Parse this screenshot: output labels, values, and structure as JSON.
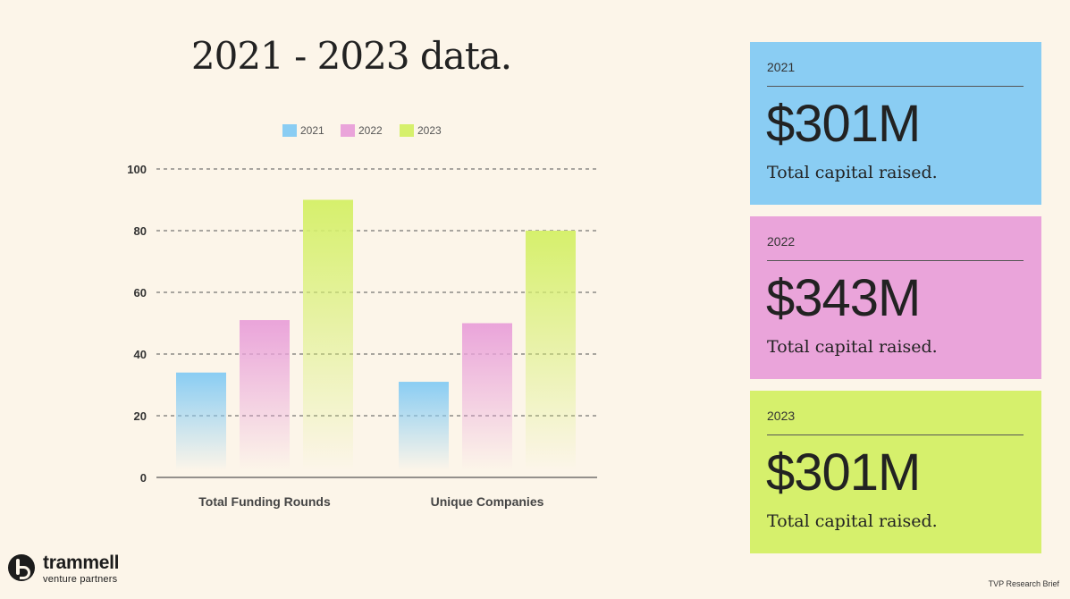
{
  "page": {
    "title": "2021 - 2023 data."
  },
  "chart_data": {
    "type": "bar",
    "title": "",
    "xlabel": "",
    "ylabel": "",
    "categories": [
      "Total Funding Rounds",
      "Unique Companies"
    ],
    "series": [
      {
        "name": "2021",
        "values": [
          34,
          31
        ],
        "color": "#8acdf3"
      },
      {
        "name": "2022",
        "values": [
          51,
          50
        ],
        "color": "#eaa4da"
      },
      {
        "name": "2023",
        "values": [
          90,
          80
        ],
        "color": "#d6f06c"
      }
    ],
    "ylim": [
      0,
      100
    ],
    "yticks": [
      "0",
      "20",
      "40",
      "60",
      "80",
      "100"
    ],
    "grid": "horizontal-dashed",
    "legend": "top-center"
  },
  "cards": [
    {
      "year": "2021",
      "amount": "$301M",
      "caption": "Total capital raised.",
      "color": "#8acdf3"
    },
    {
      "year": "2022",
      "amount": "$343M",
      "caption": "Total capital raised.",
      "color": "#eaa4da"
    },
    {
      "year": "2023",
      "amount": "$301M",
      "caption": "Total capital raised.",
      "color": "#d6f06c"
    }
  ],
  "logo": {
    "name": "trammell",
    "sub": "venture partners",
    "icon": "trammell-t-logo-icon"
  },
  "footer": {
    "note": "TVP Research Brief"
  }
}
